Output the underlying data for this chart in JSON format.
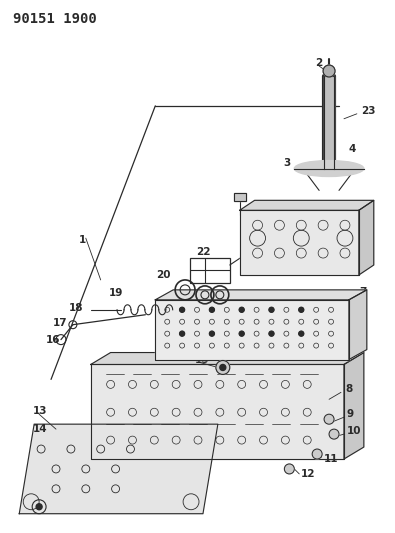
{
  "title": "90151 1900",
  "bg_color": "#ffffff",
  "line_color": "#2a2a2a",
  "title_fontsize": 10,
  "label_fontsize": 7.5,
  "fig_width": 3.95,
  "fig_height": 5.33,
  "dpi": 100
}
